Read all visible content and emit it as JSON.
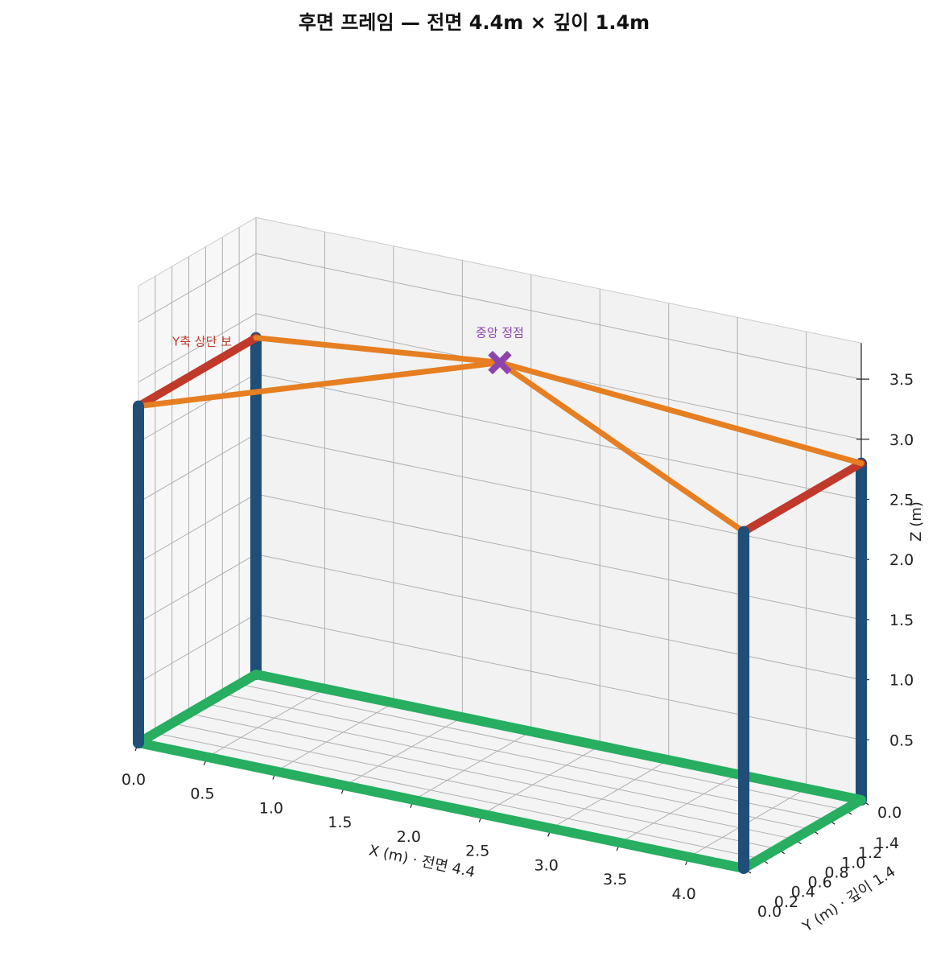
{
  "chart_data": {
    "type": "3d-line",
    "title": "후면 프레임 — 전면 4.4m × 깊이 1.4m",
    "xlabel": "X (m) · 전면 4.4",
    "ylabel": "Y (m) · 깊이 1.4",
    "zlabel": "Z (m)",
    "xlim": [
      0,
      4.4
    ],
    "ylim": [
      0,
      1.4
    ],
    "zlim": [
      0,
      3.8
    ],
    "x_ticks": [
      "0.0",
      "0.5",
      "1.0",
      "1.5",
      "2.0",
      "2.5",
      "3.0",
      "3.5",
      "4.0"
    ],
    "y_ticks": [
      "0.0",
      "0.2",
      "0.4",
      "0.6",
      "0.8",
      "1.0",
      "1.2",
      "1.4"
    ],
    "z_ticks": [
      "0.5",
      "1.0",
      "1.5",
      "2.0",
      "2.5",
      "3.0",
      "3.5"
    ],
    "grid": true,
    "colors": {
      "column": "#1f4e79",
      "base": "#27ae60",
      "y_beam": "#c0392b",
      "rafter": "#e67e22",
      "apex": "#8e44ad",
      "pane": "#f2f2f2",
      "gridline": "#b0b0b0"
    },
    "columns": [
      {
        "x": 0.0,
        "y": 0.0,
        "z0": 0.0,
        "z1": 2.8
      },
      {
        "x": 0.0,
        "y": 1.4,
        "z0": 0.0,
        "z1": 2.8
      },
      {
        "x": 4.4,
        "y": 0.0,
        "z0": 0.0,
        "z1": 2.8
      },
      {
        "x": 4.4,
        "y": 1.4,
        "z0": 0.0,
        "z1": 2.8
      }
    ],
    "base_beams": [
      {
        "from": [
          0.0,
          0.0,
          0.0
        ],
        "to": [
          4.4,
          0.0,
          0.0
        ]
      },
      {
        "from": [
          0.0,
          1.4,
          0.0
        ],
        "to": [
          4.4,
          1.4,
          0.0
        ]
      },
      {
        "from": [
          0.0,
          0.0,
          0.0
        ],
        "to": [
          0.0,
          1.4,
          0.0
        ]
      },
      {
        "from": [
          4.4,
          0.0,
          0.0
        ],
        "to": [
          4.4,
          1.4,
          0.0
        ]
      }
    ],
    "y_beams": [
      {
        "from": [
          0.0,
          0.0,
          2.8
        ],
        "to": [
          0.0,
          1.4,
          2.8
        ]
      },
      {
        "from": [
          4.4,
          0.0,
          2.8
        ],
        "to": [
          4.4,
          1.4,
          2.8
        ]
      }
    ],
    "apex": {
      "x": 2.2,
      "y": 0.7,
      "z": 3.4
    },
    "rafters": [
      {
        "from": [
          0.0,
          0.0,
          2.8
        ],
        "to": [
          2.2,
          0.7,
          3.4
        ]
      },
      {
        "from": [
          0.0,
          1.4,
          2.8
        ],
        "to": [
          2.2,
          0.7,
          3.4
        ]
      },
      {
        "from": [
          4.4,
          0.0,
          2.8
        ],
        "to": [
          2.2,
          0.7,
          3.4
        ]
      },
      {
        "from": [
          4.4,
          1.4,
          2.8
        ],
        "to": [
          2.2,
          0.7,
          3.4
        ]
      }
    ],
    "annotations": {
      "y_beam_label": "Y축 상단 보",
      "apex_label": "중앙 정점"
    }
  }
}
